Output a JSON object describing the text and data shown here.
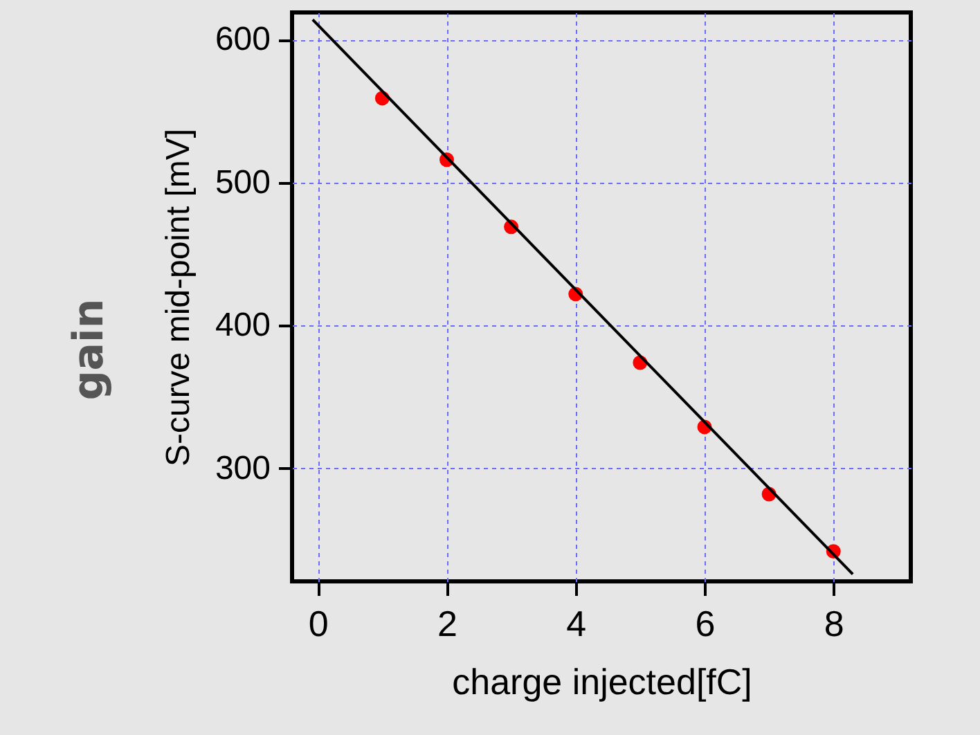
{
  "chart_data": {
    "type": "scatter",
    "xlabel": "charge injected[fC]",
    "ylabel": "S-curve mid-point [mV]",
    "annotations": [
      "gain"
    ],
    "xlim": [
      -0.4,
      9.2
    ],
    "ylim": [
      221,
      619
    ],
    "xticks": [
      0,
      2,
      4,
      6,
      8
    ],
    "yticks": [
      300,
      400,
      500,
      600
    ],
    "grid": true,
    "series": [
      {
        "color": "#ff0000",
        "marker": "circle",
        "x": [
          1,
          2,
          3,
          4,
          5,
          6,
          7,
          8
        ],
        "values": [
          559,
          516,
          469,
          422,
          374,
          329,
          282,
          242
        ]
      },
      {
        "type": "line",
        "marker": "none",
        "color": "#000000",
        "x": [
          -0.08,
          8.3
        ],
        "values": [
          614,
          226
        ]
      }
    ]
  }
}
